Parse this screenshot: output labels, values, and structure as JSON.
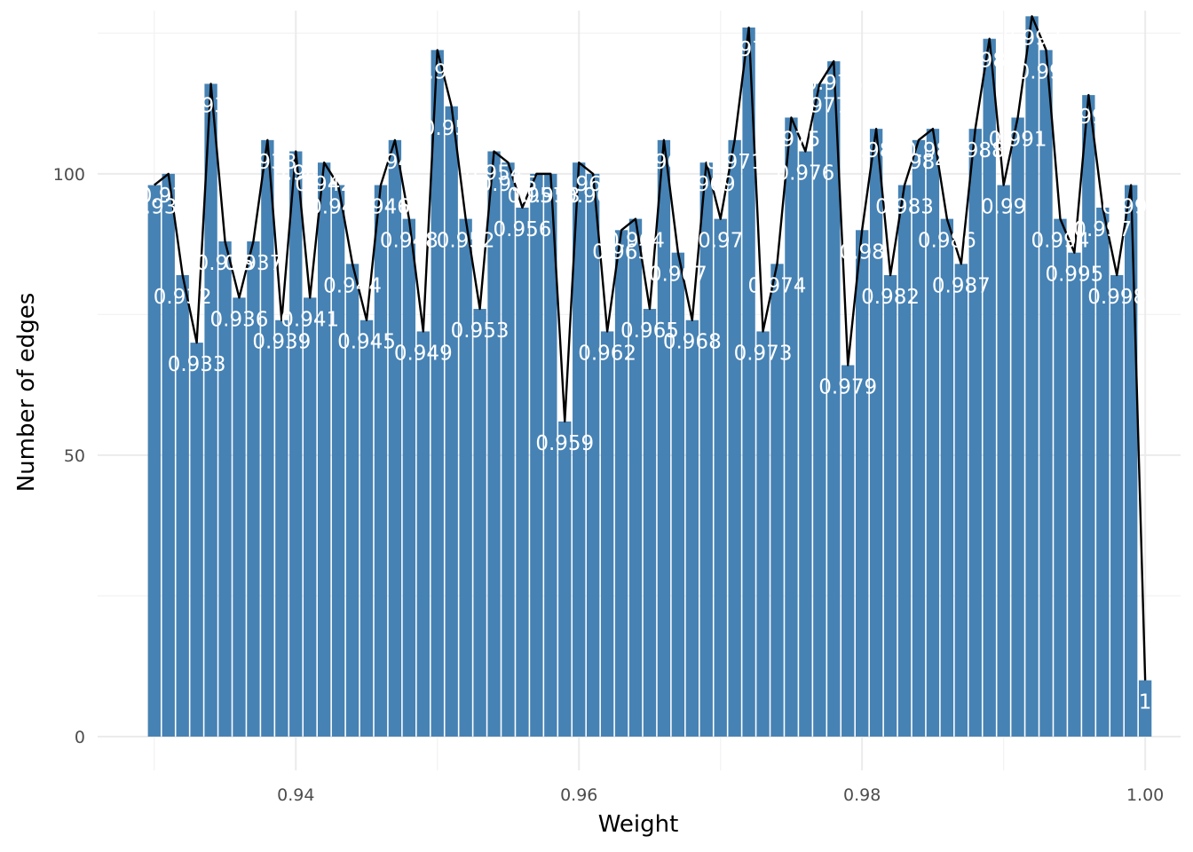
{
  "chart_data": {
    "type": "bar",
    "title": "",
    "xlabel": "Weight",
    "ylabel": "Number of edges",
    "xlim": [
      0.926,
      1.0025
    ],
    "ylim": [
      -6,
      129
    ],
    "x_ticks": [
      0.94,
      0.96,
      0.98,
      1.0
    ],
    "x_tick_labels": [
      "0.94",
      "0.96",
      "0.98",
      "1.00"
    ],
    "y_ticks": [
      0,
      50,
      100
    ],
    "y_tick_labels": [
      "0",
      "50",
      "100"
    ],
    "grid": true,
    "legend": "none",
    "overlay": "line connecting bar tops",
    "bar_color": "#4682b4",
    "line_color": "#000000",
    "label_color": "#ffffff",
    "x": [
      0.93,
      0.931,
      0.932,
      0.933,
      0.934,
      0.935,
      0.936,
      0.937,
      0.938,
      0.939,
      0.94,
      0.941,
      0.942,
      0.943,
      0.944,
      0.945,
      0.946,
      0.947,
      0.948,
      0.949,
      0.95,
      0.951,
      0.952,
      0.953,
      0.954,
      0.955,
      0.956,
      0.957,
      0.958,
      0.959,
      0.96,
      0.961,
      0.962,
      0.963,
      0.964,
      0.965,
      0.966,
      0.967,
      0.968,
      0.969,
      0.97,
      0.971,
      0.972,
      0.973,
      0.974,
      0.975,
      0.976,
      0.977,
      0.978,
      0.979,
      0.98,
      0.981,
      0.982,
      0.983,
      0.984,
      0.985,
      0.986,
      0.987,
      0.988,
      0.989,
      0.99,
      0.991,
      0.992,
      0.993,
      0.994,
      0.995,
      0.996,
      0.997,
      0.998,
      0.999,
      1.0
    ],
    "values": [
      98,
      100,
      82,
      70,
      116,
      88,
      78,
      88,
      106,
      74,
      104,
      78,
      102,
      98,
      84,
      74,
      98,
      106,
      92,
      72,
      122,
      112,
      92,
      76,
      104,
      102,
      94,
      100,
      100,
      56,
      102,
      100,
      72,
      90,
      92,
      76,
      106,
      86,
      74,
      102,
      92,
      106,
      126,
      72,
      84,
      110,
      104,
      116,
      120,
      66,
      90,
      108,
      82,
      98,
      106,
      108,
      92,
      84,
      108,
      124,
      98,
      110,
      128,
      122,
      92,
      86,
      114,
      94,
      82,
      98,
      10
    ],
    "labels": [
      "0.93",
      "0.931",
      "0.932",
      "0.933",
      "0.934",
      "0.935",
      "0.936",
      "0.937",
      "0.938",
      "0.939",
      "0.94",
      "0.941",
      "0.942",
      "0.943",
      "0.944",
      "0.945",
      "0.946",
      "0.947",
      "0.948",
      "0.949",
      "0.95",
      "0.951",
      "0.952",
      "0.953",
      "0.954",
      "0.955",
      "0.956",
      "0.957",
      "0.958",
      "0.959",
      "0.96",
      "0.961",
      "0.962",
      "0.963",
      "0.964",
      "0.965",
      "0.966",
      "0.967",
      "0.968",
      "0.969",
      "0.97",
      "0.971",
      "0.972",
      "0.973",
      "0.974",
      "0.975",
      "0.976",
      "0.977",
      "0.978",
      "0.979",
      "0.98",
      "0.981",
      "0.982",
      "0.983",
      "0.984",
      "0.985",
      "0.986",
      "0.987",
      "0.988",
      "0.989",
      "0.99",
      "0.991",
      "0.992",
      "0.993",
      "0.994",
      "0.995",
      "0.996",
      "0.997",
      "0.998",
      "0.999",
      "1"
    ]
  }
}
